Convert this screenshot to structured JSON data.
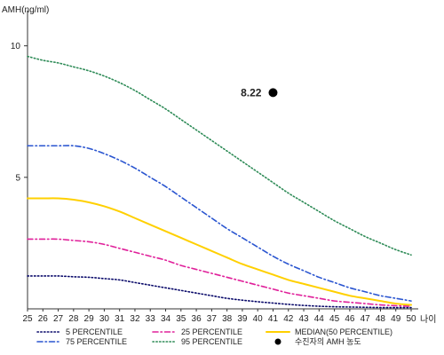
{
  "chart_data": {
    "type": "line",
    "ylabel": "AMH(ng/ml)",
    "xlabel": "나이",
    "xlim": [
      25,
      50
    ],
    "ylim": [
      0,
      11
    ],
    "x_ticks": [
      25,
      26,
      27,
      28,
      29,
      30,
      31,
      32,
      33,
      34,
      35,
      36,
      37,
      38,
      39,
      40,
      41,
      42,
      43,
      44,
      45,
      46,
      47,
      48,
      49,
      50
    ],
    "y_ticks": [
      5,
      10
    ],
    "x": [
      25,
      26,
      27,
      28,
      29,
      30,
      31,
      32,
      33,
      34,
      35,
      36,
      37,
      38,
      39,
      40,
      41,
      42,
      43,
      44,
      45,
      46,
      47,
      48,
      49,
      50
    ],
    "series": [
      {
        "name": "5 PERCENTILE",
        "color": "#0a0a6a",
        "dash": "dotted",
        "values": [
          1.25,
          1.25,
          1.25,
          1.22,
          1.2,
          1.15,
          1.1,
          1.0,
          0.9,
          0.8,
          0.7,
          0.6,
          0.5,
          0.4,
          0.33,
          0.27,
          0.22,
          0.17,
          0.13,
          0.1,
          0.08,
          0.07,
          0.06,
          0.05,
          0.05,
          0.05
        ]
      },
      {
        "name": "25 PERCENTILE",
        "color": "#e0209a",
        "dash": "dashdot",
        "values": [
          2.65,
          2.65,
          2.65,
          2.6,
          2.55,
          2.45,
          2.3,
          2.15,
          2.0,
          1.85,
          1.65,
          1.5,
          1.35,
          1.2,
          1.05,
          0.9,
          0.75,
          0.6,
          0.5,
          0.4,
          0.3,
          0.25,
          0.2,
          0.15,
          0.12,
          0.1
        ]
      },
      {
        "name": "MEDIAN(50 PERCENTILE)",
        "color": "#ffd000",
        "dash": "solid",
        "values": [
          4.2,
          4.2,
          4.2,
          4.15,
          4.05,
          3.9,
          3.7,
          3.45,
          3.2,
          2.95,
          2.7,
          2.45,
          2.2,
          1.95,
          1.7,
          1.5,
          1.3,
          1.1,
          0.95,
          0.8,
          0.65,
          0.5,
          0.4,
          0.3,
          0.2,
          0.15
        ]
      },
      {
        "name": "75 PERCENTILE",
        "color": "#2a55d0",
        "dash": "dashdot",
        "values": [
          6.2,
          6.2,
          6.2,
          6.2,
          6.1,
          5.9,
          5.65,
          5.35,
          5.0,
          4.65,
          4.25,
          3.85,
          3.45,
          3.05,
          2.7,
          2.35,
          2.0,
          1.7,
          1.45,
          1.2,
          1.0,
          0.8,
          0.65,
          0.5,
          0.4,
          0.3
        ]
      },
      {
        "name": "95 PERCENTILE",
        "color": "#2e8b57",
        "dash": "dotted",
        "values": [
          9.6,
          9.45,
          9.35,
          9.2,
          9.05,
          8.85,
          8.6,
          8.3,
          7.95,
          7.6,
          7.2,
          6.8,
          6.4,
          6.0,
          5.6,
          5.2,
          4.8,
          4.4,
          4.05,
          3.7,
          3.35,
          3.05,
          2.75,
          2.5,
          2.25,
          2.05
        ]
      }
    ],
    "point": {
      "name": "수진자의 AMH 농도",
      "x": 41,
      "y": 8.22,
      "label": "8.22",
      "color": "#000000"
    },
    "legend": {
      "placement": "bottom",
      "order": [
        "5 PERCENTILE",
        "25 PERCENTILE",
        "MEDIAN(50 PERCENTILE)",
        "75 PERCENTILE",
        "95 PERCENTILE",
        "수진자의 AMH 농도"
      ]
    },
    "grid": false
  }
}
